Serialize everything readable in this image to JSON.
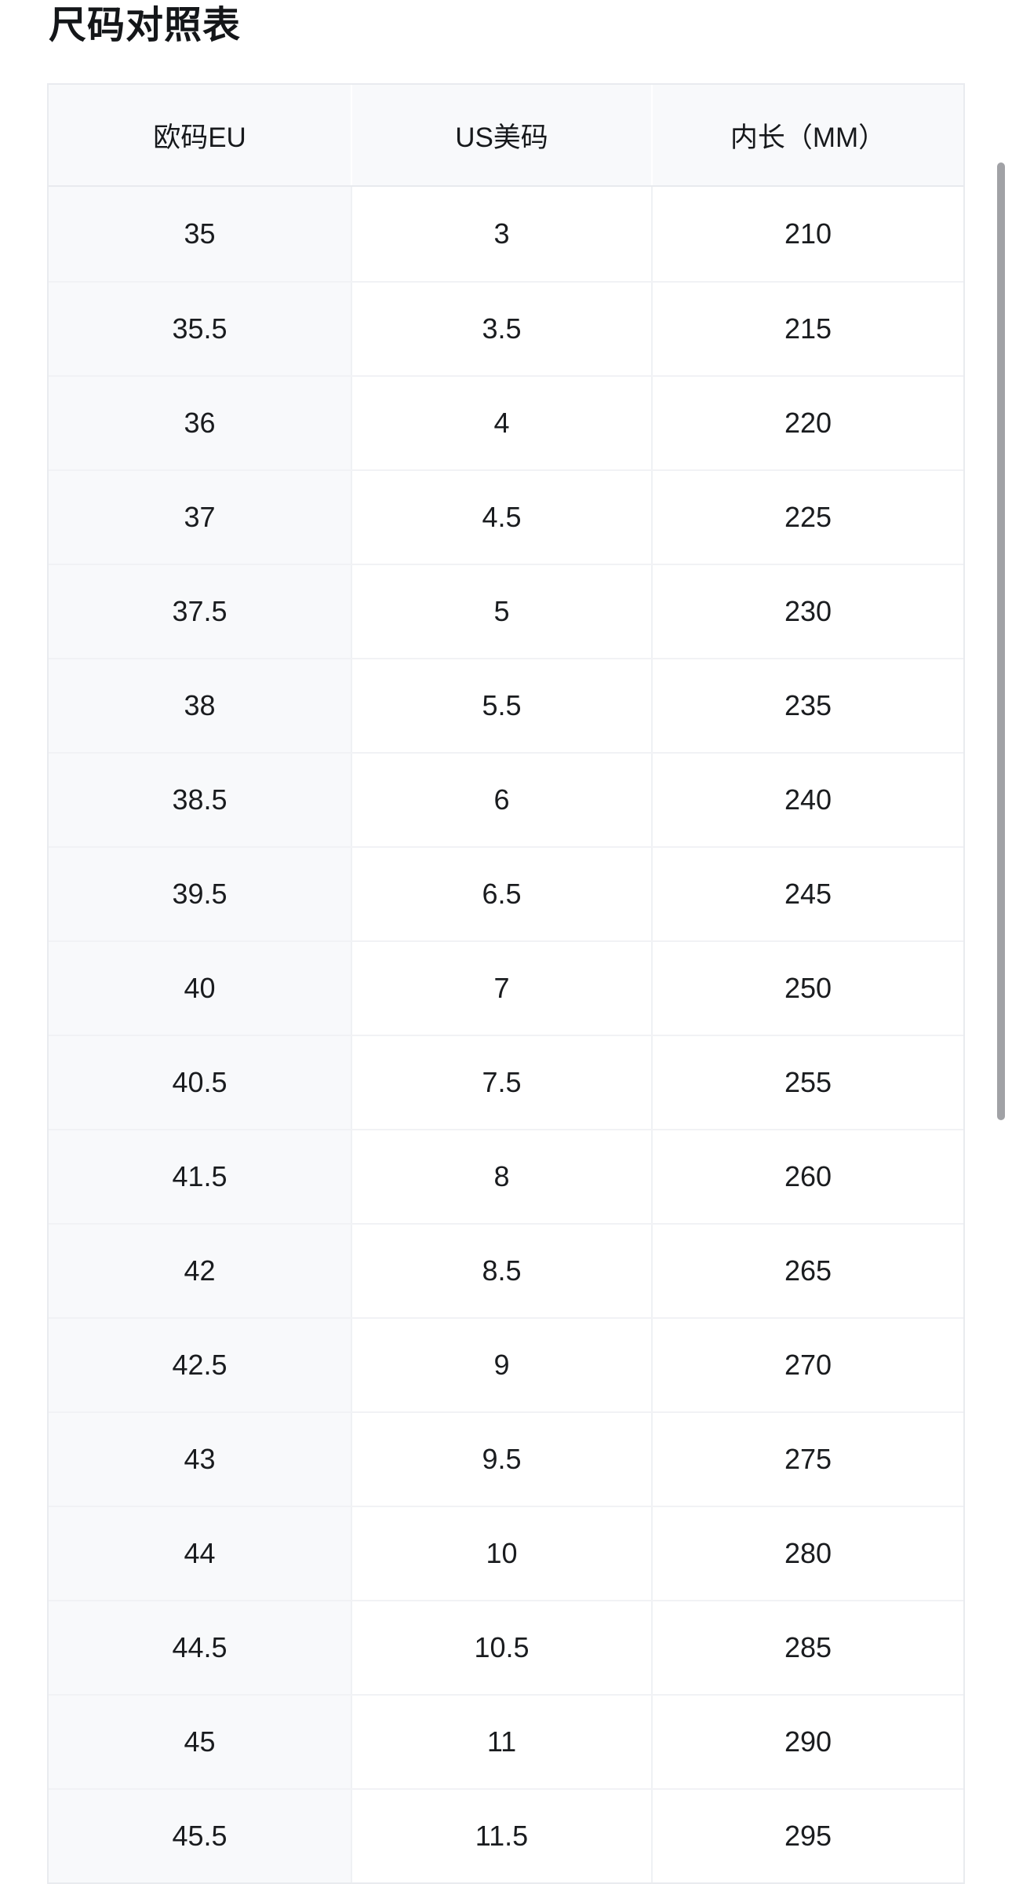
{
  "title": "尺码对照表",
  "table": {
    "columns": [
      "欧码EU",
      "US美码",
      "内长（MM）"
    ],
    "rows": [
      [
        "35",
        "3",
        "210"
      ],
      [
        "35.5",
        "3.5",
        "215"
      ],
      [
        "36",
        "4",
        "220"
      ],
      [
        "37",
        "4.5",
        "225"
      ],
      [
        "37.5",
        "5",
        "230"
      ],
      [
        "38",
        "5.5",
        "235"
      ],
      [
        "38.5",
        "6",
        "240"
      ],
      [
        "39.5",
        "6.5",
        "245"
      ],
      [
        "40",
        "7",
        "250"
      ],
      [
        "40.5",
        "7.5",
        "255"
      ],
      [
        "41.5",
        "8",
        "260"
      ],
      [
        "42",
        "8.5",
        "265"
      ],
      [
        "42.5",
        "9",
        "270"
      ],
      [
        "43",
        "9.5",
        "275"
      ],
      [
        "44",
        "10",
        "280"
      ],
      [
        "44.5",
        "10.5",
        "285"
      ],
      [
        "45",
        "11",
        "290"
      ],
      [
        "45.5",
        "11.5",
        "295"
      ]
    ]
  },
  "colors": {
    "header_bg": "#f8f9fb",
    "first_column_bg": "#f8f9fb",
    "row_border": "#f1f2f5",
    "outer_border": "#e9ebef",
    "scrollbar_thumb": "#a1a2a6",
    "text": "#1a1c1f"
  }
}
